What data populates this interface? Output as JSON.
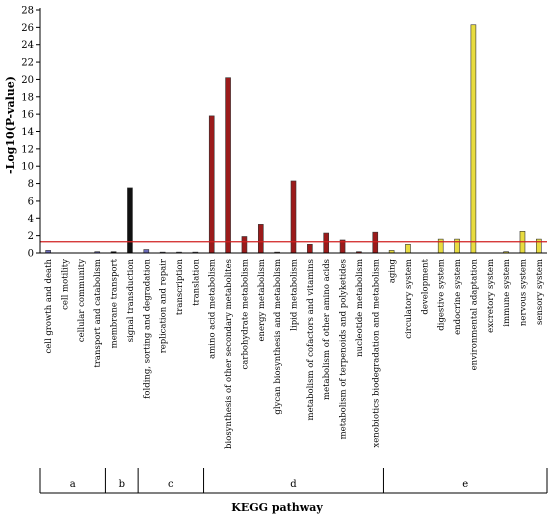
{
  "chart_data": {
    "type": "bar",
    "xlabel": "KEGG pathway",
    "ylabel": "-Log10(P-value)",
    "ylim": [
      0,
      28
    ],
    "yticks": [
      0,
      2,
      4,
      6,
      8,
      10,
      12,
      14,
      16,
      18,
      20,
      22,
      24,
      26,
      28
    ],
    "threshold": 1.3,
    "colors": {
      "a": "#6a6ab8",
      "b": "#111111",
      "c": "#6a6ab8",
      "d": "#9b1b1b",
      "e": "#e8dc40",
      "threshold_line": "#d02020"
    },
    "groups": [
      {
        "label": "a",
        "categories": [
          "cell growth and death",
          "cell motility",
          "cellular community",
          "transport and catabolism"
        ],
        "values": [
          0.3,
          0,
          0,
          0.15
        ]
      },
      {
        "label": "b",
        "categories": [
          "membrane transport",
          "signal transduction"
        ],
        "values": [
          0.15,
          7.5
        ]
      },
      {
        "label": "c",
        "categories": [
          "folding, sorting and degradation",
          "replication and repair",
          "transcription",
          "translation"
        ],
        "values": [
          0.4,
          0.1,
          0.1,
          0.1
        ]
      },
      {
        "label": "d",
        "categories": [
          "amino acid metabolism",
          "biosynthesis of other secondary metabolites",
          "carbohydrate metabolism",
          "energy metabolism",
          "glycan biosynthesis and metabolism",
          "lipid metabolism",
          "metabolism of cofactors and vitamins",
          "metabolism of other amino acids",
          "metabolism of terpenoids and polyketides",
          "nucleotide metabolism",
          "xenobiotics biodegradation and metabolism"
        ],
        "values": [
          15.8,
          20.2,
          1.9,
          3.3,
          0.1,
          8.3,
          1.0,
          2.3,
          1.5,
          0.15,
          2.4
        ]
      },
      {
        "label": "e",
        "categories": [
          "aging",
          "circulatory system",
          "development",
          "digestive system",
          "endocrine system",
          "environmental adaptation",
          "excretory system",
          "immune system",
          "nervous system",
          "sensory system"
        ],
        "values": [
          0.3,
          1.0,
          0,
          1.6,
          1.6,
          26.3,
          0,
          0.15,
          2.5,
          1.6
        ]
      }
    ]
  }
}
